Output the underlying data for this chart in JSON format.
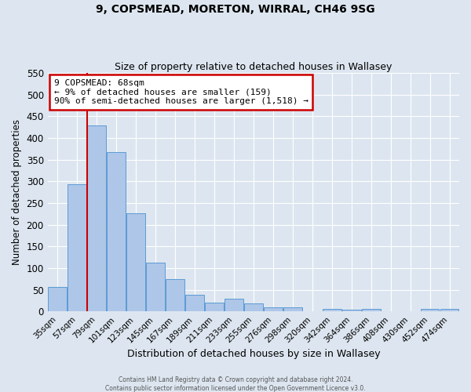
{
  "title": "9, COPSMEAD, MORETON, WIRRAL, CH46 9SG",
  "subtitle": "Size of property relative to detached houses in Wallasey",
  "xlabel": "Distribution of detached houses by size in Wallasey",
  "ylabel": "Number of detached properties",
  "categories": [
    "35sqm",
    "57sqm",
    "79sqm",
    "101sqm",
    "123sqm",
    "145sqm",
    "167sqm",
    "189sqm",
    "211sqm",
    "233sqm",
    "255sqm",
    "276sqm",
    "298sqm",
    "320sqm",
    "342sqm",
    "364sqm",
    "386sqm",
    "408sqm",
    "430sqm",
    "452sqm",
    "474sqm"
  ],
  "values": [
    57,
    293,
    430,
    368,
    227,
    113,
    75,
    38,
    21,
    29,
    18,
    10,
    10,
    0,
    5,
    4,
    6,
    0,
    0,
    5,
    5
  ],
  "bar_color": "#aec6e8",
  "bar_edge_color": "#5b9bd5",
  "background_color": "#dde6f0",
  "ylim": [
    0,
    550
  ],
  "yticks": [
    0,
    50,
    100,
    150,
    200,
    250,
    300,
    350,
    400,
    450,
    500,
    550
  ],
  "vline_color": "#cc0000",
  "annotation_line1": "9 COPSMEAD: 68sqm",
  "annotation_line2": "← 9% of detached houses are smaller (159)",
  "annotation_line3": "90% of semi-detached houses are larger (1,518) →",
  "annotation_box_color": "#cc0000",
  "footer1": "Contains HM Land Registry data © Crown copyright and database right 2024.",
  "footer2": "Contains public sector information licensed under the Open Government Licence v3.0."
}
